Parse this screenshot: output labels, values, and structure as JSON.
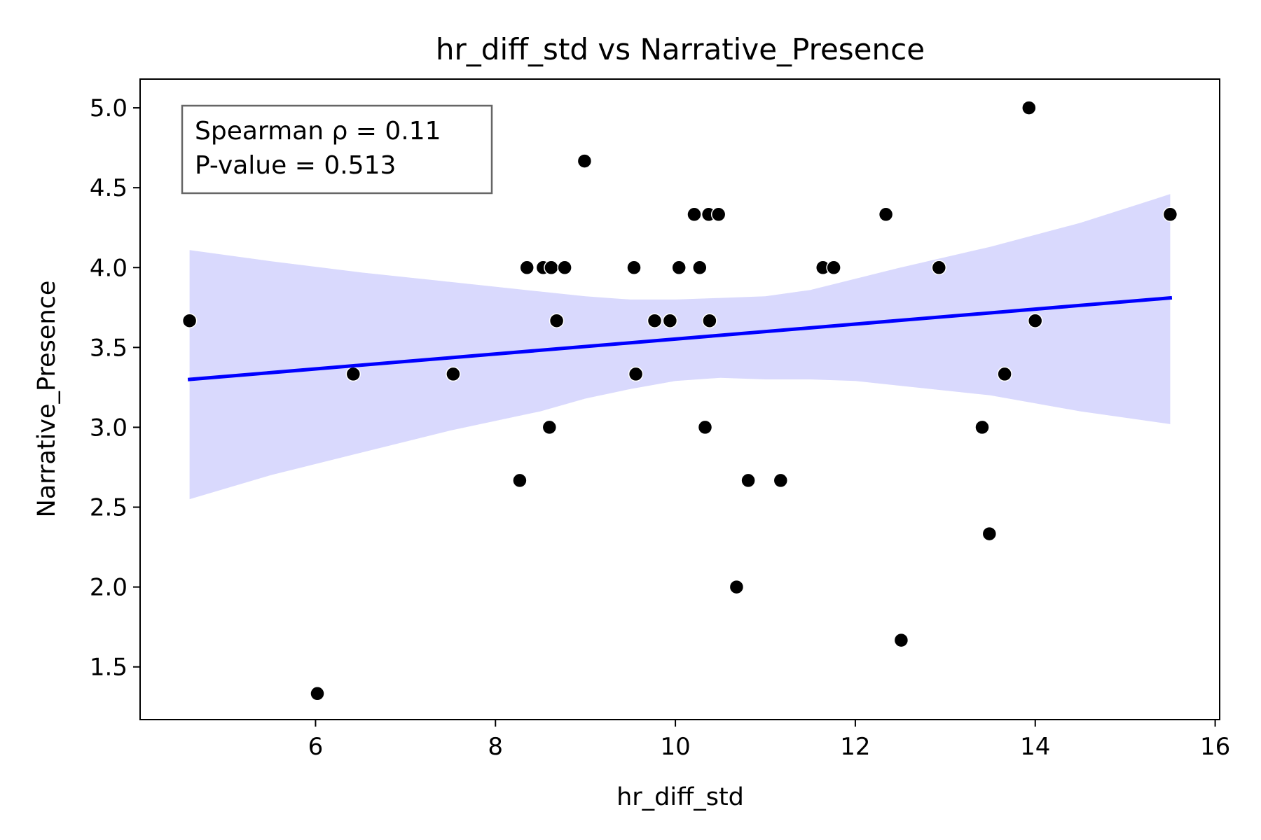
{
  "chart_data": {
    "type": "scatter",
    "title": "hr_diff_std vs Narrative_Presence",
    "xlabel": "hr_diff_std",
    "ylabel": "Narrative_Presence",
    "xlim": [
      4.05,
      16.05
    ],
    "ylim": [
      1.17,
      5.18
    ],
    "x_ticks": [
      6,
      8,
      10,
      12,
      14,
      16
    ],
    "y_ticks": [
      1.5,
      2.0,
      2.5,
      3.0,
      3.5,
      4.0,
      4.5,
      5.0
    ],
    "x_tick_labels": [
      "6",
      "8",
      "10",
      "12",
      "14",
      "16"
    ],
    "y_tick_labels": [
      "1.5",
      "2.0",
      "2.5",
      "3.0",
      "3.5",
      "4.0",
      "4.5",
      "5.0"
    ],
    "grid": false,
    "annotation": {
      "line1": "Spearman ρ = 0.11",
      "line2": "P-value = 0.513",
      "placement": "top-left"
    },
    "point_color": "#000000",
    "line_color": "#0000ff",
    "band_color": "#d9d9fd",
    "points": [
      {
        "x": 4.6,
        "y": 3.667
      },
      {
        "x": 6.02,
        "y": 1.333
      },
      {
        "x": 6.42,
        "y": 3.333
      },
      {
        "x": 7.53,
        "y": 3.333
      },
      {
        "x": 8.27,
        "y": 2.667
      },
      {
        "x": 8.35,
        "y": 4.0
      },
      {
        "x": 8.53,
        "y": 4.0
      },
      {
        "x": 8.6,
        "y": 3.0
      },
      {
        "x": 8.62,
        "y": 4.0
      },
      {
        "x": 8.68,
        "y": 3.667
      },
      {
        "x": 8.77,
        "y": 4.0
      },
      {
        "x": 8.99,
        "y": 4.667
      },
      {
        "x": 9.54,
        "y": 4.0
      },
      {
        "x": 9.56,
        "y": 3.333
      },
      {
        "x": 9.77,
        "y": 3.667
      },
      {
        "x": 9.94,
        "y": 3.667
      },
      {
        "x": 10.04,
        "y": 4.0
      },
      {
        "x": 10.21,
        "y": 4.333
      },
      {
        "x": 10.27,
        "y": 4.0
      },
      {
        "x": 10.33,
        "y": 3.0
      },
      {
        "x": 10.37,
        "y": 4.333
      },
      {
        "x": 10.38,
        "y": 3.667
      },
      {
        "x": 10.48,
        "y": 4.333
      },
      {
        "x": 10.68,
        "y": 2.0
      },
      {
        "x": 10.81,
        "y": 2.667
      },
      {
        "x": 11.17,
        "y": 2.667
      },
      {
        "x": 11.64,
        "y": 4.0
      },
      {
        "x": 11.76,
        "y": 4.0
      },
      {
        "x": 12.34,
        "y": 4.333
      },
      {
        "x": 12.51,
        "y": 1.667
      },
      {
        "x": 12.93,
        "y": 4.0
      },
      {
        "x": 13.41,
        "y": 3.0
      },
      {
        "x": 13.49,
        "y": 2.333
      },
      {
        "x": 13.66,
        "y": 3.333
      },
      {
        "x": 13.93,
        "y": 5.0
      },
      {
        "x": 14.0,
        "y": 3.667
      },
      {
        "x": 15.5,
        "y": 4.333
      }
    ],
    "regression_line": {
      "x": [
        4.6,
        15.5
      ],
      "y": [
        3.3,
        3.81
      ]
    },
    "confidence_band": {
      "x": [
        4.6,
        5.5,
        6.5,
        7.5,
        8.5,
        9.0,
        9.5,
        10.0,
        10.5,
        11.0,
        11.5,
        12.0,
        12.5,
        13.5,
        14.5,
        15.5
      ],
      "upper": [
        4.11,
        4.04,
        3.97,
        3.91,
        3.85,
        3.82,
        3.8,
        3.8,
        3.81,
        3.82,
        3.86,
        3.93,
        4.0,
        4.13,
        4.28,
        4.46
      ],
      "lower": [
        2.55,
        2.7,
        2.84,
        2.98,
        3.1,
        3.18,
        3.24,
        3.29,
        3.31,
        3.3,
        3.3,
        3.29,
        3.26,
        3.2,
        3.1,
        3.02
      ]
    }
  }
}
